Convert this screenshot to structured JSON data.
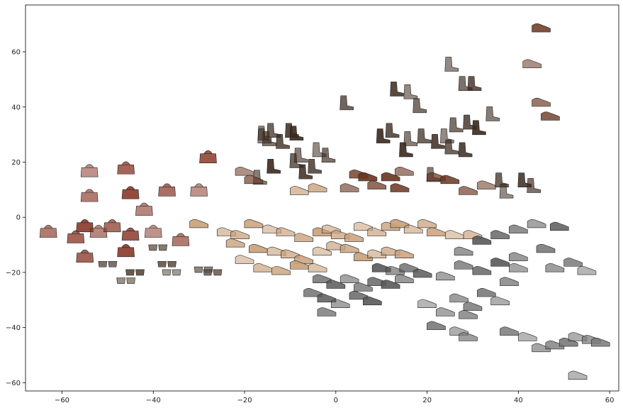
{
  "chart_data": {
    "type": "scatter",
    "title": "",
    "xlabel": "",
    "ylabel": "",
    "xlim": [
      -68,
      62
    ],
    "ylim": [
      -63,
      77
    ],
    "xticks": [
      -60,
      -40,
      -20,
      0,
      20,
      40,
      60
    ],
    "yticks": [
      -60,
      -40,
      -20,
      0,
      20,
      40,
      60
    ],
    "grid": false,
    "legend": "none",
    "marker": "product thumbnail images (t-SNE embedding)",
    "series": [
      {
        "name": "handbags",
        "color": "#8b3a2a",
        "points": [
          [
            -54,
            17
          ],
          [
            -54,
            8
          ],
          [
            -46,
            18
          ],
          [
            -45,
            9
          ],
          [
            -42,
            3
          ],
          [
            -37,
            10
          ],
          [
            -28,
            22
          ],
          [
            -30,
            10
          ],
          [
            -63,
            -5
          ],
          [
            -57,
            -7
          ],
          [
            -55,
            -3
          ],
          [
            -52,
            -5
          ],
          [
            -49,
            -3
          ],
          [
            -45,
            -6
          ],
          [
            -40,
            -5
          ],
          [
            -34,
            -8
          ],
          [
            -55,
            -14
          ],
          [
            -46,
            -12
          ]
        ]
      },
      {
        "name": "accessories / sunglasses",
        "color": "#5a4a3a",
        "points": [
          [
            -50,
            -17
          ],
          [
            -44,
            -20
          ],
          [
            -46,
            -23
          ],
          [
            -39,
            -11
          ],
          [
            -37,
            -17
          ],
          [
            -36,
            -20
          ],
          [
            -29,
            -19
          ],
          [
            -27,
            -20
          ]
        ]
      },
      {
        "name": "boots",
        "color": "#3b2a1e",
        "points": [
          [
            -16,
            30
          ],
          [
            -14,
            31
          ],
          [
            -10,
            31
          ],
          [
            -16,
            29
          ],
          [
            -15,
            28
          ],
          [
            -12,
            27
          ],
          [
            -9,
            30
          ],
          [
            -8,
            22
          ],
          [
            -9,
            20
          ],
          [
            -7,
            16
          ],
          [
            -4,
            24
          ],
          [
            -2,
            22
          ],
          [
            -5,
            18
          ],
          [
            -14,
            18
          ],
          [
            -17,
            14
          ],
          [
            2,
            41
          ],
          [
            13,
            46
          ],
          [
            16,
            45
          ],
          [
            18,
            40
          ],
          [
            12,
            31
          ],
          [
            10,
            29
          ],
          [
            16,
            28
          ],
          [
            19,
            29
          ],
          [
            22,
            27
          ],
          [
            24,
            29
          ],
          [
            26,
            33
          ],
          [
            29,
            34
          ],
          [
            31,
            32
          ],
          [
            34,
            37
          ],
          [
            25,
            25
          ],
          [
            28,
            24
          ],
          [
            25,
            55
          ],
          [
            28,
            48
          ],
          [
            30,
            48
          ],
          [
            15,
            24
          ],
          [
            21,
            15
          ],
          [
            36,
            13
          ],
          [
            41,
            13
          ],
          [
            37,
            9
          ],
          [
            43,
            11
          ]
        ]
      },
      {
        "name": "dress shoes",
        "color": "#6b3520",
        "points": [
          [
            45,
            69
          ],
          [
            43,
            56
          ],
          [
            45,
            42
          ],
          [
            47,
            37
          ],
          [
            12,
            15
          ],
          [
            15,
            17
          ],
          [
            22,
            15
          ],
          [
            25,
            14
          ],
          [
            33,
            12
          ],
          [
            29,
            10
          ],
          [
            5,
            16
          ],
          [
            7,
            15
          ],
          [
            3,
            11
          ],
          [
            9,
            12
          ],
          [
            14,
            11
          ],
          [
            -20,
            17
          ],
          [
            -18,
            14
          ]
        ]
      },
      {
        "name": "heels & sandals",
        "color": "#c8a07a",
        "points": [
          [
            -8,
            10
          ],
          [
            -4,
            11
          ],
          [
            -30,
            -2
          ],
          [
            -24,
            -5
          ],
          [
            -21,
            -6
          ],
          [
            -18,
            -2
          ],
          [
            -14,
            -4
          ],
          [
            -11,
            -5
          ],
          [
            -7,
            -7
          ],
          [
            -3,
            -5
          ],
          [
            -1,
            -4
          ],
          [
            1,
            -6
          ],
          [
            4,
            -7
          ],
          [
            6,
            -3
          ],
          [
            9,
            -5
          ],
          [
            12,
            -3
          ],
          [
            14,
            -2
          ],
          [
            17,
            -4
          ],
          [
            20,
            -2
          ],
          [
            22,
            -5
          ],
          [
            26,
            -6
          ],
          [
            30,
            -6
          ],
          [
            -22,
            -9
          ],
          [
            -17,
            -11
          ],
          [
            -13,
            -12
          ],
          [
            -10,
            -13
          ],
          [
            -7,
            -15
          ],
          [
            -3,
            -12
          ],
          [
            0,
            -10
          ],
          [
            3,
            -11
          ],
          [
            6,
            -14
          ],
          [
            9,
            -13
          ],
          [
            12,
            -12
          ],
          [
            15,
            -13
          ],
          [
            -20,
            -15
          ],
          [
            -16,
            -18
          ],
          [
            -12,
            -19
          ],
          [
            -8,
            -17
          ],
          [
            -4,
            -18
          ]
        ]
      },
      {
        "name": "flats & casual",
        "color": "#5a5a5a",
        "points": [
          [
            10,
            -18
          ],
          [
            13,
            -19
          ],
          [
            16,
            -18
          ],
          [
            19,
            -20
          ],
          [
            24,
            -21
          ],
          [
            28,
            -17
          ],
          [
            32,
            -19
          ],
          [
            36,
            -16
          ],
          [
            40,
            -14
          ],
          [
            46,
            -11
          ],
          [
            49,
            -3
          ],
          [
            44,
            -2
          ],
          [
            40,
            -4
          ],
          [
            36,
            -6
          ],
          [
            32,
            -8
          ],
          [
            28,
            -12
          ],
          [
            -3,
            -22
          ],
          [
            0,
            -24
          ],
          [
            3,
            -22
          ],
          [
            6,
            -25
          ],
          [
            9,
            -23
          ],
          [
            12,
            -24
          ],
          [
            15,
            -22
          ],
          [
            -5,
            -27
          ],
          [
            -2,
            -29
          ],
          [
            1,
            -31
          ],
          [
            -2,
            -34
          ],
          [
            5,
            -28
          ],
          [
            8,
            -30
          ]
        ]
      },
      {
        "name": "sneakers",
        "color": "#7a7a7a",
        "points": [
          [
            48,
            -18
          ],
          [
            52,
            -16
          ],
          [
            55,
            -19
          ],
          [
            40,
            -18
          ],
          [
            38,
            -23
          ],
          [
            33,
            -27
          ],
          [
            36,
            -30
          ],
          [
            27,
            -29
          ],
          [
            30,
            -32
          ],
          [
            20,
            -31
          ],
          [
            24,
            -34
          ],
          [
            29,
            -35
          ],
          [
            22,
            -39
          ],
          [
            27,
            -41
          ],
          [
            29,
            -43
          ],
          [
            38,
            -41
          ],
          [
            42,
            -43
          ],
          [
            45,
            -47
          ],
          [
            48,
            -46
          ],
          [
            51,
            -45
          ],
          [
            53,
            -43
          ],
          [
            56,
            -44
          ],
          [
            58,
            -45
          ],
          [
            53,
            -57
          ]
        ]
      }
    ]
  }
}
